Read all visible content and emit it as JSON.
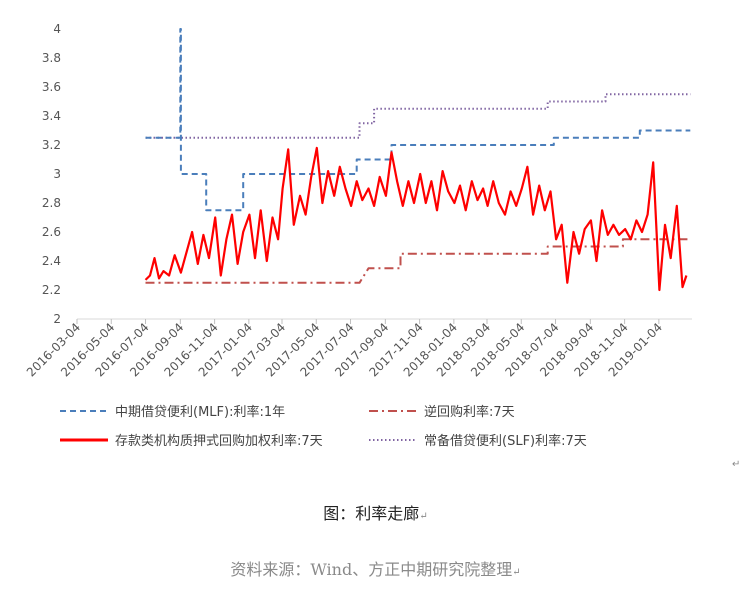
{
  "chart_data": {
    "type": "line",
    "y_ticks": [
      "2",
      "2.2",
      "2.4",
      "2.6",
      "2.8",
      "3",
      "3.2",
      "3.4",
      "3.6",
      "3.8",
      "4"
    ],
    "ylim": [
      2,
      4
    ],
    "x_ticks": [
      "2016-03-04",
      "2016-05-04",
      "2016-07-04",
      "2016-09-04",
      "2016-11-04",
      "2017-01-04",
      "2017-03-04",
      "2017-05-04",
      "2017-07-04",
      "2017-09-04",
      "2017-11-04",
      "2018-01-04",
      "2018-03-04",
      "2018-05-04",
      "2018-07-04",
      "2018-09-04",
      "2018-11-04",
      "2019-01-04"
    ],
    "xlim": [
      "2016-03-04",
      "2019-03-04"
    ],
    "grid": false,
    "legend_position": "bottom",
    "series": [
      {
        "name": "中期借贷便利(MLF):利率:1年",
        "color": "#4a7ebb",
        "style": "dashed",
        "points": [
          [
            "2016-07-04",
            3.25
          ],
          [
            "2016-09-04",
            3.25
          ],
          [
            "2016-09-04",
            4.0
          ],
          [
            "2016-09-05",
            4.0
          ],
          [
            "2016-09-05",
            3.0
          ],
          [
            "2016-10-20",
            3.0
          ],
          [
            "2016-10-20",
            2.75
          ],
          [
            "2016-12-25",
            2.75
          ],
          [
            "2016-12-25",
            3.0
          ],
          [
            "2017-07-15",
            3.0
          ],
          [
            "2017-07-15",
            3.1
          ],
          [
            "2017-09-15",
            3.1
          ],
          [
            "2017-09-15",
            3.2
          ],
          [
            "2018-07-01",
            3.2
          ],
          [
            "2018-07-01",
            3.25
          ],
          [
            "2018-12-01",
            3.25
          ],
          [
            "2018-12-01",
            3.3
          ],
          [
            "2019-03-01",
            3.3
          ]
        ]
      },
      {
        "name": "逆回购利率:7天",
        "color": "#c0504d",
        "style": "dash-dot",
        "points": [
          [
            "2016-07-04",
            2.25
          ],
          [
            "2017-07-20",
            2.25
          ],
          [
            "2017-08-05",
            2.35
          ],
          [
            "2017-10-01",
            2.35
          ],
          [
            "2017-10-01",
            2.45
          ],
          [
            "2018-06-20",
            2.45
          ],
          [
            "2018-06-20",
            2.5
          ],
          [
            "2018-11-01",
            2.5
          ],
          [
            "2018-11-01",
            2.55
          ],
          [
            "2019-03-01",
            2.55
          ]
        ]
      },
      {
        "name": "存款类机构质押式回购加权利率:7天",
        "color": "#ff0000",
        "style": "solid",
        "points": [
          [
            "2016-07-04",
            2.27
          ],
          [
            "2016-07-12",
            2.3
          ],
          [
            "2016-07-20",
            2.42
          ],
          [
            "2016-07-28",
            2.28
          ],
          [
            "2016-08-05",
            2.33
          ],
          [
            "2016-08-15",
            2.3
          ],
          [
            "2016-08-25",
            2.44
          ],
          [
            "2016-09-05",
            2.32
          ],
          [
            "2016-09-15",
            2.46
          ],
          [
            "2016-09-25",
            2.6
          ],
          [
            "2016-10-05",
            2.38
          ],
          [
            "2016-10-15",
            2.58
          ],
          [
            "2016-10-25",
            2.42
          ],
          [
            "2016-11-05",
            2.7
          ],
          [
            "2016-11-15",
            2.3
          ],
          [
            "2016-11-25",
            2.55
          ],
          [
            "2016-12-05",
            2.72
          ],
          [
            "2016-12-15",
            2.38
          ],
          [
            "2016-12-25",
            2.6
          ],
          [
            "2017-01-05",
            2.72
          ],
          [
            "2017-01-15",
            2.42
          ],
          [
            "2017-01-25",
            2.75
          ],
          [
            "2017-02-05",
            2.4
          ],
          [
            "2017-02-15",
            2.7
          ],
          [
            "2017-02-25",
            2.55
          ],
          [
            "2017-03-05",
            2.9
          ],
          [
            "2017-03-15",
            3.17
          ],
          [
            "2017-03-25",
            2.65
          ],
          [
            "2017-04-05",
            2.85
          ],
          [
            "2017-04-15",
            2.72
          ],
          [
            "2017-04-25",
            2.98
          ],
          [
            "2017-05-05",
            3.18
          ],
          [
            "2017-05-15",
            2.8
          ],
          [
            "2017-05-25",
            3.02
          ],
          [
            "2017-06-05",
            2.85
          ],
          [
            "2017-06-15",
            3.05
          ],
          [
            "2017-06-25",
            2.9
          ],
          [
            "2017-07-05",
            2.78
          ],
          [
            "2017-07-15",
            2.95
          ],
          [
            "2017-07-25",
            2.82
          ],
          [
            "2017-08-05",
            2.9
          ],
          [
            "2017-08-15",
            2.78
          ],
          [
            "2017-08-25",
            2.98
          ],
          [
            "2017-09-05",
            2.85
          ],
          [
            "2017-09-15",
            3.15
          ],
          [
            "2017-09-25",
            2.95
          ],
          [
            "2017-10-05",
            2.78
          ],
          [
            "2017-10-15",
            2.95
          ],
          [
            "2017-10-25",
            2.8
          ],
          [
            "2017-11-05",
            3.0
          ],
          [
            "2017-11-15",
            2.8
          ],
          [
            "2017-11-25",
            2.95
          ],
          [
            "2017-12-05",
            2.75
          ],
          [
            "2017-12-15",
            3.02
          ],
          [
            "2017-12-25",
            2.88
          ],
          [
            "2018-01-05",
            2.8
          ],
          [
            "2018-01-15",
            2.92
          ],
          [
            "2018-01-25",
            2.75
          ],
          [
            "2018-02-05",
            2.95
          ],
          [
            "2018-02-15",
            2.82
          ],
          [
            "2018-02-25",
            2.9
          ],
          [
            "2018-03-05",
            2.78
          ],
          [
            "2018-03-15",
            2.95
          ],
          [
            "2018-03-25",
            2.8
          ],
          [
            "2018-04-05",
            2.72
          ],
          [
            "2018-04-15",
            2.88
          ],
          [
            "2018-04-25",
            2.78
          ],
          [
            "2018-05-05",
            2.9
          ],
          [
            "2018-05-15",
            3.05
          ],
          [
            "2018-05-25",
            2.72
          ],
          [
            "2018-06-05",
            2.92
          ],
          [
            "2018-06-15",
            2.75
          ],
          [
            "2018-06-25",
            2.88
          ],
          [
            "2018-07-05",
            2.55
          ],
          [
            "2018-07-15",
            2.65
          ],
          [
            "2018-07-25",
            2.25
          ],
          [
            "2018-08-05",
            2.6
          ],
          [
            "2018-08-15",
            2.45
          ],
          [
            "2018-08-25",
            2.62
          ],
          [
            "2018-09-05",
            2.68
          ],
          [
            "2018-09-15",
            2.4
          ],
          [
            "2018-09-25",
            2.75
          ],
          [
            "2018-10-05",
            2.58
          ],
          [
            "2018-10-15",
            2.65
          ],
          [
            "2018-10-25",
            2.58
          ],
          [
            "2018-11-05",
            2.62
          ],
          [
            "2018-11-15",
            2.55
          ],
          [
            "2018-11-25",
            2.68
          ],
          [
            "2018-12-05",
            2.6
          ],
          [
            "2018-12-15",
            2.72
          ],
          [
            "2018-12-25",
            3.08
          ],
          [
            "2019-01-05",
            2.2
          ],
          [
            "2019-01-15",
            2.65
          ],
          [
            "2019-01-25",
            2.42
          ],
          [
            "2019-02-05",
            2.78
          ],
          [
            "2019-02-15",
            2.22
          ],
          [
            "2019-02-22",
            2.3
          ]
        ]
      },
      {
        "name": "常备借贷便利(SLF)利率:7天",
        "color": "#8064a2",
        "style": "dotted",
        "points": [
          [
            "2016-07-04",
            3.25
          ],
          [
            "2017-07-20",
            3.25
          ],
          [
            "2017-07-20",
            3.35
          ],
          [
            "2017-08-15",
            3.35
          ],
          [
            "2017-08-15",
            3.45
          ],
          [
            "2018-06-20",
            3.45
          ],
          [
            "2018-06-20",
            3.5
          ],
          [
            "2018-10-01",
            3.5
          ],
          [
            "2018-10-01",
            3.55
          ],
          [
            "2019-03-01",
            3.55
          ]
        ]
      }
    ]
  },
  "captions": {
    "figure": "图：利率走廊",
    "source": "资料来源：Wind、方正中期研究院整理",
    "return_mark": "↵"
  }
}
